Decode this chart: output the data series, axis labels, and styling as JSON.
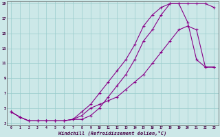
{
  "xlabel": "Windchill (Refroidissement éolien,°C)",
  "xlim": [
    0,
    23
  ],
  "ylim": [
    3,
    19
  ],
  "xtick_labels": [
    "0",
    "1",
    "2",
    "3",
    "4",
    "5",
    "6",
    "7",
    "8",
    "9",
    "10",
    "11",
    "12",
    "13",
    "14",
    "15",
    "16",
    "17",
    "18",
    "19",
    "20",
    "21",
    "22",
    "23"
  ],
  "xticks": [
    0,
    1,
    2,
    3,
    4,
    5,
    6,
    7,
    8,
    9,
    10,
    11,
    12,
    13,
    14,
    15,
    16,
    17,
    18,
    19,
    20,
    21,
    22,
    23
  ],
  "yticks": [
    3,
    5,
    7,
    9,
    11,
    13,
    15,
    17,
    19
  ],
  "bg_color": "#cce8e8",
  "line_color": "#880088",
  "grid_color": "#99cccc",
  "curve1_x": [
    0,
    1,
    2,
    3,
    4,
    5,
    6,
    7,
    8,
    9,
    10,
    11,
    12,
    13,
    14,
    15,
    16,
    17,
    18,
    19,
    20,
    21,
    22,
    23
  ],
  "curve1_y": [
    4.5,
    3.8,
    3.3,
    3.3,
    3.3,
    3.3,
    3.3,
    3.5,
    4.5,
    5.5,
    7.0,
    8.5,
    10.0,
    11.5,
    13.5,
    16.0,
    17.5,
    18.5,
    19.0,
    19.0,
    19.0,
    19.0,
    19.0,
    18.5
  ],
  "curve2_x": [
    0,
    1,
    2,
    3,
    4,
    5,
    6,
    7,
    8,
    9,
    10,
    11,
    12,
    13,
    14,
    15,
    16,
    17,
    18,
    19,
    20,
    21,
    22,
    23
  ],
  "curve2_y": [
    4.5,
    3.8,
    3.3,
    3.3,
    3.3,
    3.3,
    3.3,
    3.5,
    3.5,
    4.0,
    5.0,
    6.5,
    8.0,
    9.5,
    11.5,
    14.0,
    15.5,
    17.5,
    19.0,
    19.0,
    16.5,
    11.5,
    10.5,
    10.5
  ],
  "curve3_x": [
    0,
    1,
    2,
    3,
    4,
    5,
    6,
    7,
    8,
    9,
    10,
    11,
    12,
    13,
    14,
    15,
    16,
    17,
    18,
    19,
    20,
    21,
    22,
    23
  ],
  "curve3_y": [
    4.5,
    3.8,
    3.3,
    3.3,
    3.3,
    3.3,
    3.3,
    3.5,
    4.0,
    5.0,
    5.5,
    6.0,
    6.5,
    7.5,
    8.5,
    9.5,
    11.0,
    12.5,
    14.0,
    15.5,
    16.0,
    15.5,
    10.5,
    10.5
  ]
}
